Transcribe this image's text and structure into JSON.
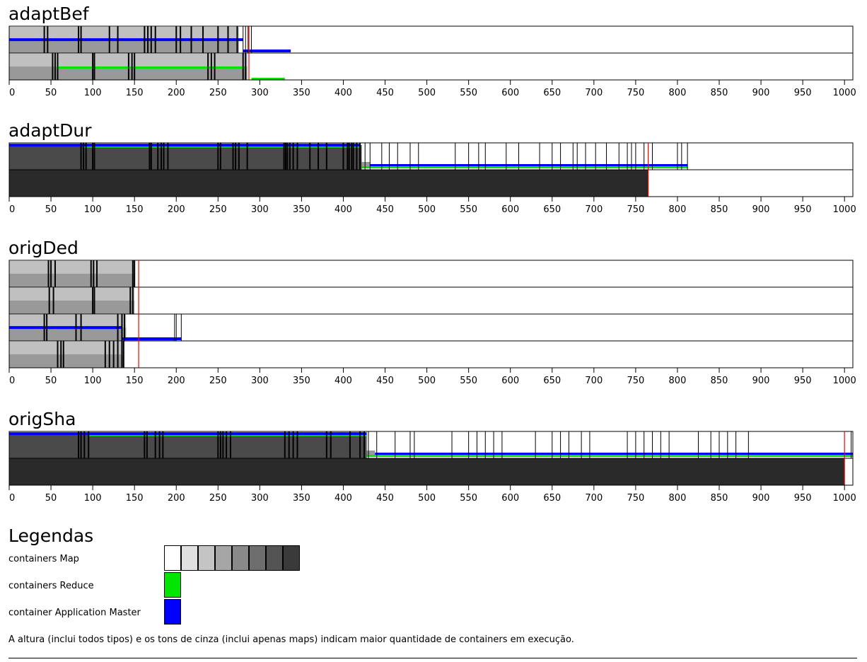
{
  "colors": {
    "map_shades": [
      "#ffffff",
      "#e0e0e0",
      "#c4c4c4",
      "#a6a6a6",
      "#898989",
      "#6e6e6e",
      "#545454",
      "#3a3a3a"
    ],
    "reduce": "#00e600",
    "app_master": "#0000ff",
    "marker": "#ff0000",
    "machine_dark": "#2a2a2a"
  },
  "chart_data": [
    {
      "type": "gantt",
      "title": "adaptBef",
      "x_ticks": [
        0,
        50,
        100,
        150,
        200,
        250,
        300,
        350,
        400,
        450,
        500,
        550,
        600,
        650,
        700,
        750,
        800,
        850,
        900,
        950,
        1000
      ],
      "xlim": [
        0,
        1010
      ],
      "lanes": [
        {
          "end": 337,
          "base_shade": 3,
          "map_end": 275,
          "events": [
            42,
            46,
            83,
            86,
            120,
            130,
            162,
            166,
            170,
            175,
            200,
            205,
            218,
            232,
            250,
            262,
            273,
            280,
            283,
            286,
            290
          ],
          "am_level": 0.55,
          "am_until": 280,
          "am_tail_level": 0.08,
          "reduce_until": 0
        },
        {
          "end": 330,
          "base_shade": 3,
          "map_end": 285,
          "events": [
            52,
            55,
            58,
            100,
            102,
            143,
            147,
            150,
            238,
            242,
            246,
            280,
            283,
            287
          ],
          "am_level": 0,
          "am_until": 0,
          "reduce_level": 0.5,
          "reduce_from": 58,
          "reduce_until": 282,
          "reduce_tail_from": 290,
          "reduce_tail_until": 330
        }
      ],
      "marker": 287
    },
    {
      "type": "gantt",
      "title": "adaptDur",
      "x_ticks": [
        0,
        50,
        100,
        150,
        200,
        250,
        300,
        350,
        400,
        450,
        500,
        550,
        600,
        650,
        700,
        750,
        800,
        850,
        900,
        950,
        1000
      ],
      "xlim": [
        0,
        1010
      ],
      "lanes": [
        {
          "end": 812,
          "base_shade": 7,
          "map_end": 422,
          "events": [
            86,
            89,
            92,
            100,
            102,
            168,
            170,
            178,
            182,
            185,
            190,
            250,
            253,
            268,
            271,
            275,
            285,
            329,
            331,
            333,
            336,
            340,
            345,
            360,
            370,
            380,
            400,
            405,
            407,
            410,
            412,
            416,
            420,
            426,
            432,
            446,
            455,
            465,
            480,
            490,
            534,
            550,
            562,
            570,
            595,
            610,
            635,
            650,
            660,
            675,
            680,
            690,
            702,
            715,
            730,
            740,
            745,
            750,
            760,
            770,
            800,
            805,
            812
          ],
          "am_level": 0.97,
          "am_until": 420,
          "reduce_level": 0.9,
          "reduce_from": 88,
          "reduce_until": 420,
          "tail": true
        },
        {
          "end": 765,
          "base_shade": 7,
          "solid": true,
          "events": [],
          "am_level": 0,
          "am_until": 0,
          "reduce_until": 0
        }
      ],
      "marker": 765
    },
    {
      "type": "gantt",
      "title": "origDed",
      "x_ticks": [
        0,
        50,
        100,
        150,
        200,
        250,
        300,
        350,
        400,
        450,
        500,
        550,
        600,
        650,
        700,
        750,
        800,
        850,
        900,
        950,
        1000
      ],
      "xlim": [
        0,
        1010
      ],
      "lanes": [
        {
          "end": 150,
          "base_shade": 3,
          "map_end": 150,
          "events": [
            47,
            50,
            55,
            98,
            101,
            105,
            148,
            150
          ],
          "am_level": 0,
          "am_until": 0,
          "reduce_until": 0
        },
        {
          "end": 150,
          "base_shade": 3,
          "map_end": 150,
          "events": [
            48,
            53,
            100,
            102,
            145,
            148
          ],
          "am_level": 0,
          "am_until": 0,
          "reduce_until": 0
        },
        {
          "end": 206,
          "base_shade": 3,
          "map_end": 140,
          "events": [
            42,
            45,
            80,
            86,
            130,
            135,
            138,
            198,
            200,
            206
          ],
          "am_level": 0.55,
          "am_until": 135,
          "am_tail_level": 0.1,
          "am_tail_until": 206,
          "reduce_level": 0.5,
          "reduce_from": 45,
          "reduce_until": 130,
          "reduce_tail_from": 140,
          "reduce_tail_until": 200
        },
        {
          "end": 137,
          "base_shade": 3,
          "map_end": 137,
          "events": [
            58,
            62,
            65,
            115,
            120,
            125,
            130,
            135,
            137
          ],
          "am_level": 0,
          "am_until": 0,
          "reduce_until": 0
        }
      ],
      "marker": 155
    },
    {
      "type": "gantt",
      "title": "origSha",
      "x_ticks": [
        0,
        50,
        100,
        150,
        200,
        250,
        300,
        350,
        400,
        450,
        500,
        550,
        600,
        650,
        700,
        750,
        800,
        850,
        900,
        950,
        1000
      ],
      "xlim": [
        0,
        1010
      ],
      "lanes": [
        {
          "end": 1010,
          "base_shade": 7,
          "map_end": 428,
          "events": [
            83,
            86,
            90,
            95,
            162,
            165,
            175,
            180,
            184,
            250,
            253,
            256,
            260,
            265,
            330,
            335,
            340,
            345,
            380,
            385,
            408,
            420,
            425,
            430,
            440,
            462,
            480,
            485,
            530,
            550,
            560,
            570,
            580,
            590,
            630,
            650,
            660,
            670,
            685,
            695,
            740,
            750,
            760,
            770,
            780,
            790,
            825,
            840,
            850,
            860,
            870,
            885,
            1008
          ],
          "am_level": 0.97,
          "am_until": 428,
          "reduce_level": 0.9,
          "reduce_from": 95,
          "reduce_until": 428,
          "tail": true
        },
        {
          "end": 1010,
          "base_shade": 7,
          "solid": true,
          "solid_end": 1000,
          "events": [],
          "am_level": 0,
          "am_until": 0,
          "reduce_until": 0
        }
      ],
      "marker": 1000
    }
  ],
  "legend": {
    "title": "Legendas",
    "map_label": "containers Map",
    "reduce_label": "containers Reduce",
    "am_label": "container Application Master",
    "note": "A altura (inclui todos tipos) e os tons de cinza (inclui apenas maps) indicam maior quantidade de containers em execução."
  }
}
